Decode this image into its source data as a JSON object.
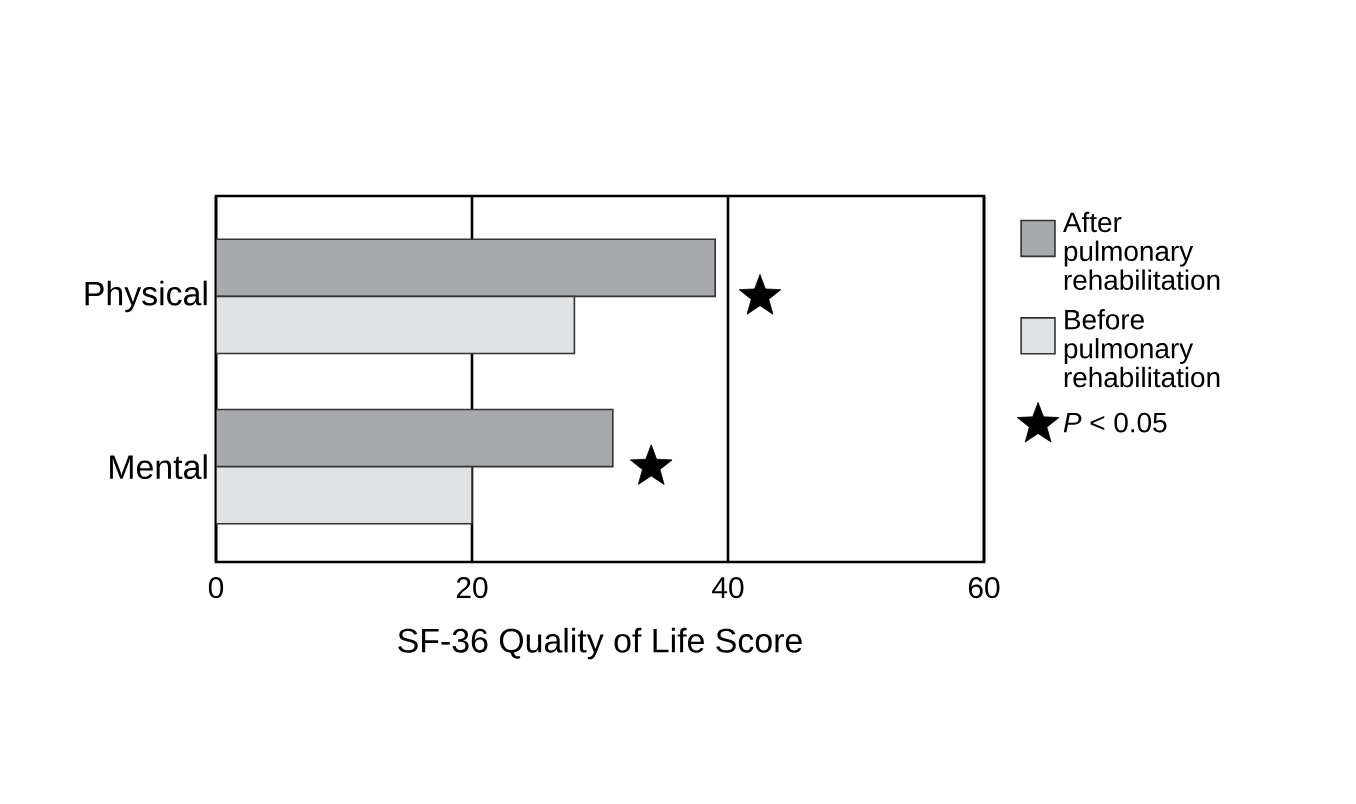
{
  "chart_data": {
    "type": "bar",
    "orientation": "horizontal",
    "xlabel": "SF-36 Quality of Life Score",
    "categories": [
      "Physical",
      "Mental"
    ],
    "series": [
      {
        "name": "After pulmonary rehabilitation",
        "color": "#a7a9ac",
        "values": [
          39,
          31
        ]
      },
      {
        "name": "Before pulmonary rehabilitation",
        "color": "#e1e2e4",
        "values": [
          28,
          20
        ]
      },
      {
        "type": "scatter",
        "name": "*P* < 0.05",
        "color": "#000000",
        "marker": "star",
        "x": [
          "Physical",
          "Mental"
        ],
        "values": [
          42.5,
          34
        ]
      }
    ],
    "xlim": [
      0,
      60
    ],
    "xticks": [
      0,
      20,
      40,
      60
    ],
    "grid": "x",
    "legend": "right"
  }
}
